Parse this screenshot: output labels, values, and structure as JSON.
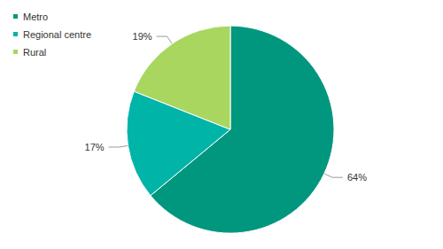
{
  "chart_data": {
    "type": "pie",
    "categories": [
      "Metro",
      "Regional centre",
      "Rural"
    ],
    "values": [
      64,
      17,
      19
    ],
    "value_labels": [
      "64%",
      "17%",
      "19%"
    ],
    "colors": [
      "#00977e",
      "#00b4a8",
      "#a8d65f"
    ],
    "data_labels": true,
    "legend": "top-left"
  }
}
